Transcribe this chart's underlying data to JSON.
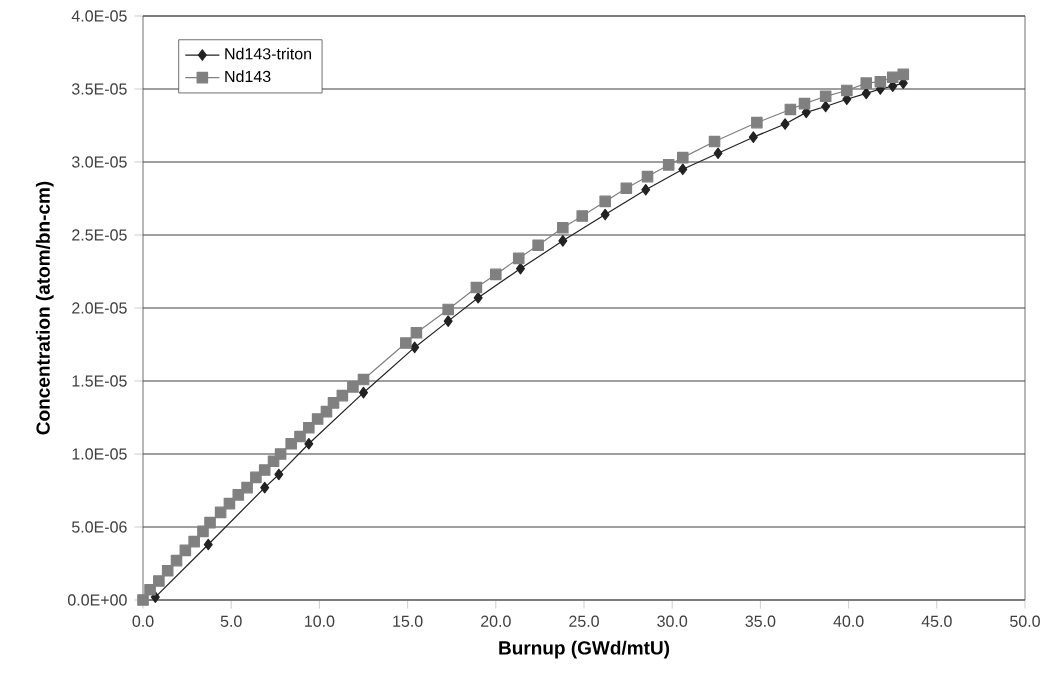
{
  "chart_data": {
    "type": "line",
    "xlabel": "Burnup (GWd/mtU)",
    "ylabel": "Concentration (atom/bn-cm)",
    "xlim": [
      0,
      50
    ],
    "xticks": [
      {
        "value": 0,
        "label": "0.0"
      },
      {
        "value": 5,
        "label": "5.0"
      },
      {
        "value": 10,
        "label": "10.0"
      },
      {
        "value": 15,
        "label": "15.0"
      },
      {
        "value": 20,
        "label": "20.0"
      },
      {
        "value": 25,
        "label": "25.0"
      },
      {
        "value": 30,
        "label": "30.0"
      },
      {
        "value": 35,
        "label": "35.0"
      },
      {
        "value": 40,
        "label": "40.0"
      },
      {
        "value": 45,
        "label": "45.0"
      },
      {
        "value": 50,
        "label": "50.0"
      }
    ],
    "ylim": [
      0,
      4e-05
    ],
    "yticks": [
      {
        "value": 0,
        "label": "0.0E+00"
      },
      {
        "value": 5e-06,
        "label": "5.0E-06"
      },
      {
        "value": 1e-05,
        "label": "1.0E-05"
      },
      {
        "value": 1.5e-05,
        "label": "1.5E-05"
      },
      {
        "value": 2e-05,
        "label": "2.0E-05"
      },
      {
        "value": 2.5e-05,
        "label": "2.5E-05"
      },
      {
        "value": 3e-05,
        "label": "3.0E-05"
      },
      {
        "value": 3.5e-05,
        "label": "3.5E-05"
      },
      {
        "value": 4e-05,
        "label": "4.0E-05"
      }
    ],
    "grid": "y",
    "legend": "top left",
    "line_style": "solid",
    "series": [
      {
        "name": "Nd143-triton",
        "color": "#222222",
        "marker": "diamond",
        "x": [
          0.7,
          3.7,
          6.9,
          7.7,
          9.4,
          12.5,
          15.4,
          17.3,
          19.0,
          21.4,
          23.8,
          26.2,
          28.5,
          30.6,
          32.6,
          34.6,
          36.4,
          37.6,
          38.7,
          39.9,
          41.0,
          41.8,
          42.5,
          43.1
        ],
        "values": [
          2e-07,
          3.8e-06,
          7.7e-06,
          8.6e-06,
          1.07e-05,
          1.42e-05,
          1.73e-05,
          1.91e-05,
          2.07e-05,
          2.27e-05,
          2.46e-05,
          2.64e-05,
          2.81e-05,
          2.95e-05,
          3.06e-05,
          3.17e-05,
          3.26e-05,
          3.34e-05,
          3.38e-05,
          3.43e-05,
          3.47e-05,
          3.5e-05,
          3.52e-05,
          3.54e-05
        ]
      },
      {
        "name": "Nd143",
        "color": "#808080",
        "marker": "square",
        "x": [
          0,
          0.4,
          0.9,
          1.4,
          1.9,
          2.4,
          2.9,
          3.4,
          3.8,
          4.4,
          4.9,
          5.4,
          5.9,
          6.4,
          6.9,
          7.4,
          7.8,
          8.4,
          8.9,
          9.4,
          9.9,
          10.4,
          10.8,
          11.3,
          11.9,
          12.5,
          14.9,
          15.5,
          17.3,
          18.9,
          20.0,
          21.3,
          22.4,
          23.8,
          24.9,
          26.2,
          27.4,
          28.6,
          29.8,
          30.6,
          32.4,
          34.8,
          36.7,
          37.5,
          38.7,
          39.9,
          41.0,
          41.8,
          42.5,
          43.1
        ],
        "values": [
          0,
          7e-07,
          1.3e-06,
          2e-06,
          2.7e-06,
          3.4e-06,
          4e-06,
          4.7e-06,
          5.3e-06,
          6e-06,
          6.6e-06,
          7.2e-06,
          7.7e-06,
          8.4e-06,
          8.9e-06,
          9.5e-06,
          1e-05,
          1.07e-05,
          1.12e-05,
          1.18e-05,
          1.24e-05,
          1.29e-05,
          1.35e-05,
          1.4e-05,
          1.46e-05,
          1.51e-05,
          1.76e-05,
          1.83e-05,
          1.99e-05,
          2.14e-05,
          2.23e-05,
          2.34e-05,
          2.43e-05,
          2.55e-05,
          2.63e-05,
          2.73e-05,
          2.82e-05,
          2.9e-05,
          2.98e-05,
          3.03e-05,
          3.14e-05,
          3.27e-05,
          3.36e-05,
          3.4e-05,
          3.45e-05,
          3.49e-05,
          3.54e-05,
          3.55e-05,
          3.58e-05,
          3.6e-05
        ]
      }
    ]
  }
}
